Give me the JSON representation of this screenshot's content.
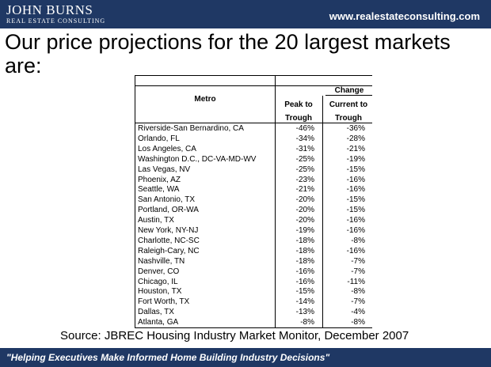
{
  "header": {
    "logo": "JOHN BURNS",
    "logo_subtitle": "REAL ESTATE CONSULTING",
    "url": "www.realestateconsulting.com"
  },
  "title": "Our price projections for the 20 largest markets are:",
  "table": {
    "columns": {
      "metro": "Metro",
      "group": "Change",
      "peak": "Peak to Trough",
      "current": "Current to Trough"
    },
    "rows": [
      [
        "Riverside-San Bernardino, CA",
        "-46%",
        "-36%"
      ],
      [
        "Orlando, FL",
        "-34%",
        "-28%"
      ],
      [
        "Los Angeles, CA",
        "-31%",
        "-21%"
      ],
      [
        "Washington D.C., DC-VA-MD-WV",
        "-25%",
        "-19%"
      ],
      [
        "Las Vegas, NV",
        "-25%",
        "-15%"
      ],
      [
        "Phoenix, AZ",
        "-23%",
        "-16%"
      ],
      [
        "Seattle, WA",
        "-21%",
        "-16%"
      ],
      [
        "San Antonio, TX",
        "-20%",
        "-15%"
      ],
      [
        "Portland, OR-WA",
        "-20%",
        "-15%"
      ],
      [
        "Austin, TX",
        "-20%",
        "-16%"
      ],
      [
        "New York, NY-NJ",
        "-19%",
        "-16%"
      ],
      [
        "Charlotte, NC-SC",
        "-18%",
        "-8%"
      ],
      [
        "Raleigh-Cary, NC",
        "-18%",
        "-16%"
      ],
      [
        "Nashville, TN",
        "-18%",
        "-7%"
      ],
      [
        "Denver, CO",
        "-16%",
        "-7%"
      ],
      [
        "Chicago, IL",
        "-16%",
        "-11%"
      ],
      [
        "Houston, TX",
        "-15%",
        "-8%"
      ],
      [
        "Fort Worth, TX",
        "-14%",
        "-7%"
      ],
      [
        "Dallas, TX",
        "-13%",
        "-4%"
      ],
      [
        "Atlanta, GA",
        "-8%",
        "-8%"
      ]
    ]
  },
  "source": "Source: JBREC Housing Industry Market Monitor, December 2007",
  "footer": "\"Helping Executives Make Informed Home Building Industry Decisions\""
}
